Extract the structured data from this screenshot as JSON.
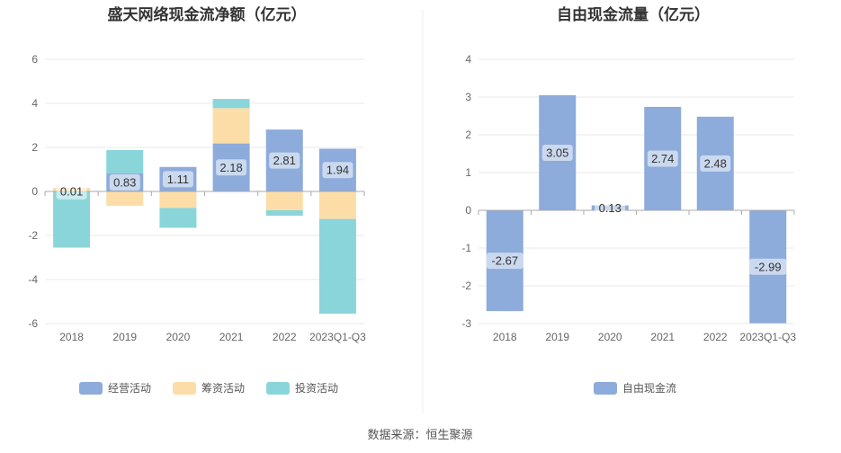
{
  "colors": {
    "operating": "#8dabdb",
    "financing": "#fddda7",
    "investing": "#8ad5da",
    "fcf": "#8dabdb",
    "grid": "#e8e8e8",
    "axis": "#aaaaaa"
  },
  "source_text": "数据来源：恒生聚源",
  "chart_data": [
    {
      "type": "bar",
      "stacked": true,
      "title": "盛天网络现金流净额（亿元）",
      "categories": [
        "2018",
        "2019",
        "2020",
        "2021",
        "2022",
        "2023Q1-Q3"
      ],
      "ylim": [
        -6,
        6
      ],
      "yticks": [
        6,
        4,
        2,
        0,
        -2,
        -4,
        -6
      ],
      "legend_position": "bottom",
      "series": [
        {
          "name": "经营活动",
          "key": "operating",
          "values": [
            0.01,
            0.83,
            1.11,
            2.18,
            2.81,
            1.94
          ],
          "labels": [
            "0.01",
            "0.83",
            "1.11",
            "2.18",
            "2.81",
            "1.94"
          ]
        },
        {
          "name": "筹资活动",
          "key": "financing",
          "values": [
            0.15,
            -0.65,
            -0.75,
            1.6,
            -0.85,
            -1.25
          ]
        },
        {
          "name": "投资活动",
          "key": "investing",
          "values": [
            -2.55,
            1.05,
            -0.9,
            0.42,
            -0.25,
            -4.3
          ]
        }
      ]
    },
    {
      "type": "bar",
      "title": "自由现金流量（亿元）",
      "categories": [
        "2018",
        "2019",
        "2020",
        "2021",
        "2022",
        "2023Q1-Q3"
      ],
      "ylim": [
        -3,
        4
      ],
      "yticks": [
        4,
        3,
        2,
        1,
        0,
        -1,
        -2,
        -3
      ],
      "legend_position": "bottom",
      "series": [
        {
          "name": "自由现金流",
          "key": "fcf",
          "values": [
            -2.67,
            3.05,
            0.13,
            2.74,
            2.48,
            -2.99
          ],
          "labels": [
            "-2.67",
            "3.05",
            "0.13",
            "2.74",
            "2.48",
            "-2.99"
          ]
        }
      ]
    }
  ]
}
